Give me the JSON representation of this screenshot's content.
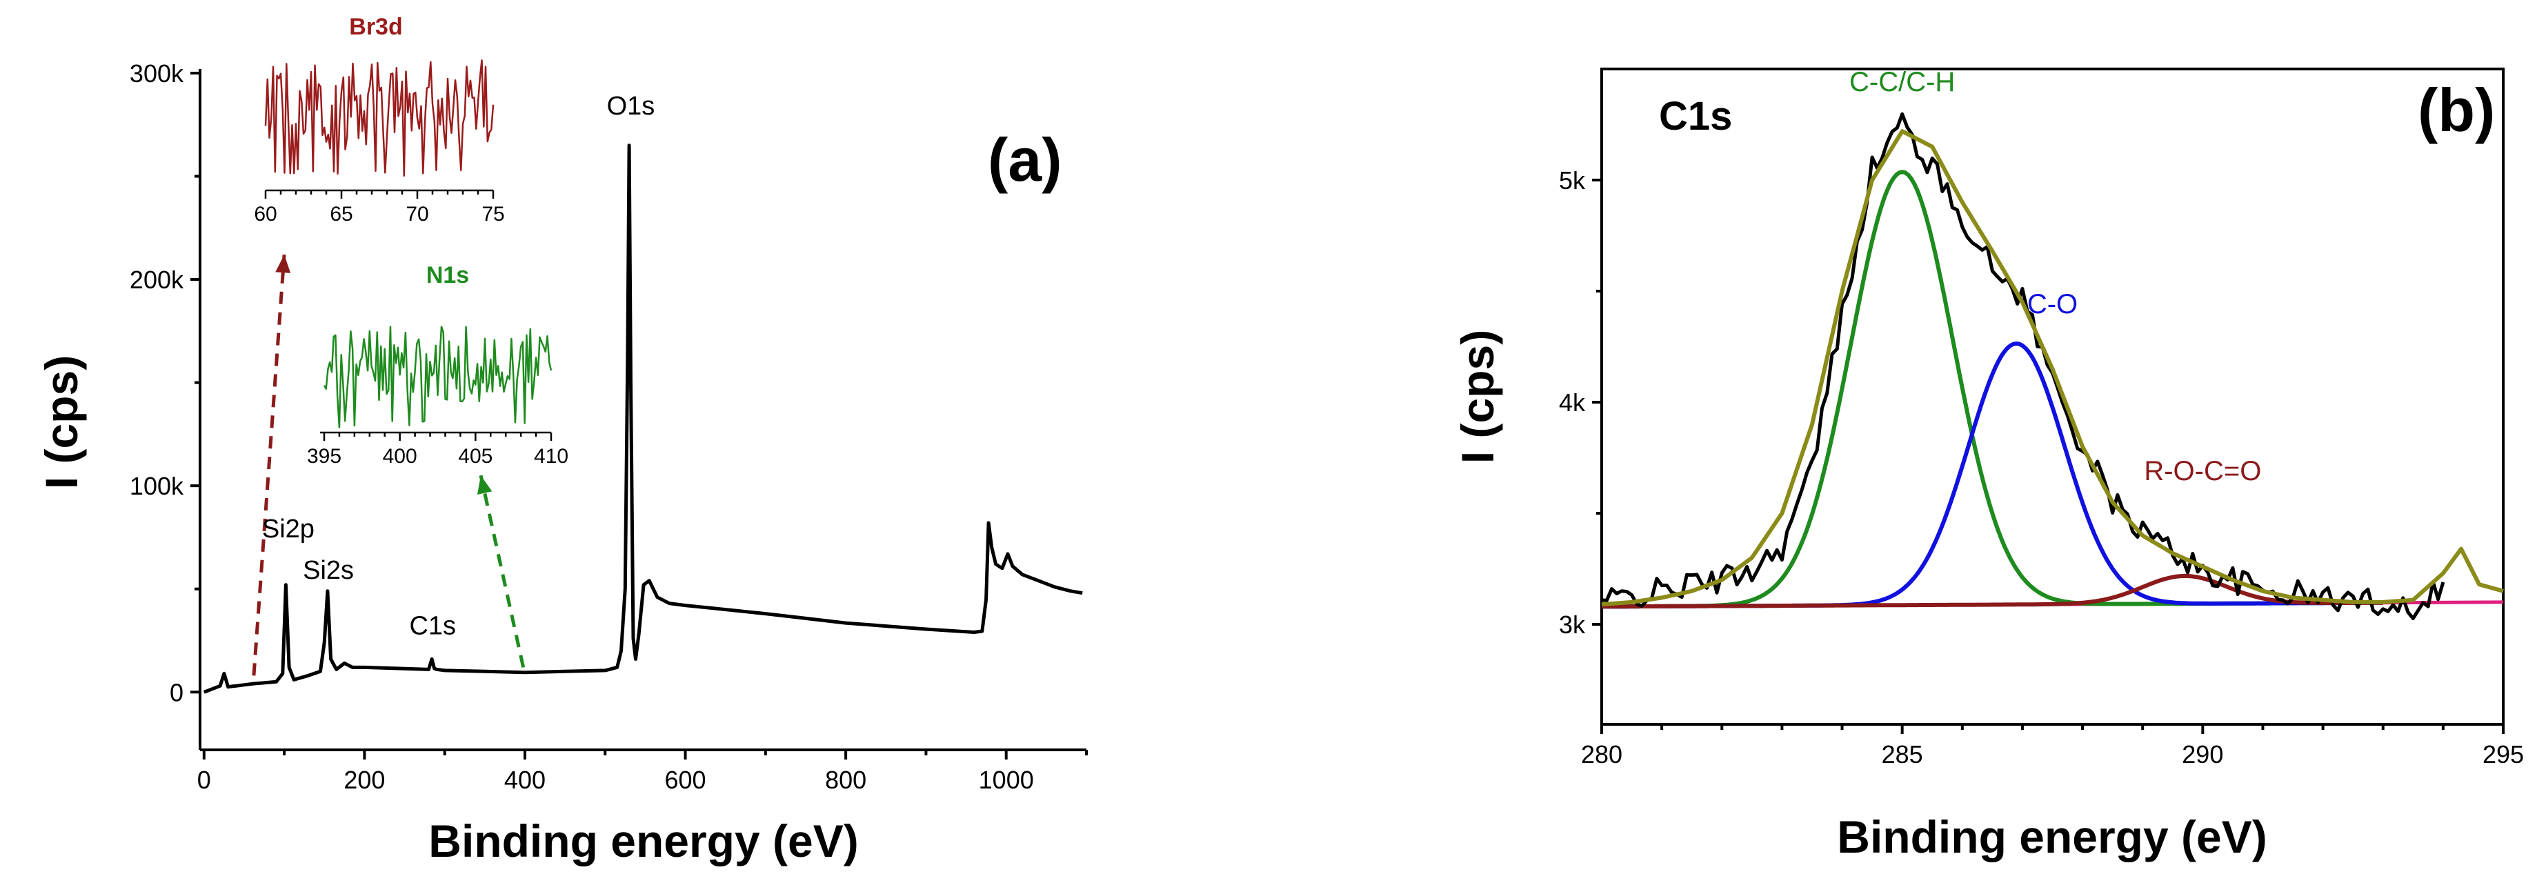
{
  "chart_data": [
    {
      "panel": "(a)",
      "type": "line",
      "title": "",
      "xlabel": "Binding energy (eV)",
      "ylabel": "I (cps)",
      "xlim": [
        -5,
        1100
      ],
      "ylim": [
        -28000,
        302000
      ],
      "xticks": [
        0,
        200,
        400,
        600,
        800,
        1000
      ],
      "xtick_labels": [
        "0",
        "200",
        "400",
        "600",
        "800",
        "1000"
      ],
      "yticks": [
        0,
        100000,
        200000,
        300000
      ],
      "ytick_labels": [
        "0",
        "100k",
        "200k",
        "300k"
      ],
      "series": [
        {
          "name": "survey",
          "color": "#000000",
          "x": [
            0,
            10,
            20,
            25,
            30,
            35,
            40,
            60,
            90,
            98,
            102,
            106,
            112,
            130,
            145,
            150,
            154,
            158,
            165,
            175,
            185,
            200,
            240,
            280,
            284,
            287,
            290,
            300,
            350,
            400,
            450,
            500,
            515,
            520,
            525,
            528,
            530,
            532,
            535,
            538,
            542,
            548,
            555,
            565,
            580,
            600,
            700,
            800,
            900,
            960,
            970,
            975,
            978,
            982,
            987,
            995,
            1002,
            1008,
            1020,
            1040,
            1060,
            1080,
            1095
          ],
          "y": [
            0,
            1500,
            3000,
            9000,
            2500,
            2800,
            3000,
            4000,
            5000,
            9000,
            52000,
            12000,
            6000,
            8000,
            10000,
            24000,
            49000,
            16000,
            11000,
            14000,
            12000,
            12000,
            11500,
            11000,
            16000,
            11500,
            11000,
            10500,
            10000,
            9500,
            10000,
            10500,
            12000,
            20000,
            50000,
            160000,
            265000,
            150000,
            26000,
            16000,
            28000,
            52000,
            54000,
            46000,
            43000,
            42000,
            38000,
            33500,
            30500,
            29000,
            29500,
            45000,
            82000,
            70000,
            62000,
            60000,
            67000,
            61000,
            57000,
            54000,
            51000,
            49000,
            48000
          ]
        }
      ],
      "annotations": [
        {
          "text": "O1s",
          "x": 532,
          "y": 280000
        },
        {
          "text": "Si2p",
          "x": 105,
          "y": 75000
        },
        {
          "text": "Si2s",
          "x": 155,
          "y": 55000
        },
        {
          "text": "C1s",
          "x": 285,
          "y": 28000
        }
      ],
      "arrows": [
        {
          "color": "#8B1A1A",
          "from": [
            62,
            8000
          ],
          "to": [
            100,
            212000
          ],
          "style": "dashed"
        },
        {
          "color": "#1E8B1E",
          "from": [
            398,
            12000
          ],
          "to": [
            345,
            105000
          ],
          "style": "dashed"
        }
      ],
      "insets": [
        {
          "title": "Br3d",
          "color": "#9B1B1B",
          "xlim": [
            60,
            75
          ],
          "xticks": [
            60,
            65,
            70,
            75
          ],
          "xtick_labels": [
            "60",
            "65",
            "70",
            "75"
          ]
        },
        {
          "title": "N1s",
          "color": "#1E8B1E",
          "xlim": [
            395,
            410
          ],
          "xticks": [
            395,
            400,
            405,
            410
          ],
          "xtick_labels": [
            "395",
            "400",
            "405",
            "410"
          ]
        }
      ]
    },
    {
      "panel": "(b)",
      "type": "line",
      "title": "C1s",
      "xlabel": "Binding energy (eV)",
      "ylabel": "I (cps)",
      "xlim": [
        280,
        295
      ],
      "ylim": [
        2550,
        5500
      ],
      "xticks": [
        280,
        285,
        290,
        295
      ],
      "xtick_labels": [
        "280",
        "285",
        "290",
        "295"
      ],
      "yticks": [
        3000,
        4000,
        5000
      ],
      "ytick_labels": [
        "3k",
        "4k",
        "5k"
      ],
      "baseline": [
        3080,
        3100
      ],
      "components": [
        {
          "name": "C-C/C-H",
          "color": "#1E8B1E",
          "center": 285.0,
          "amplitude": 1950,
          "sigma": 0.85
        },
        {
          "name": "C-O",
          "color": "#1010E0",
          "center": 286.9,
          "amplitude": 1175,
          "sigma": 0.8
        },
        {
          "name": "R-O-C=O",
          "color": "#8B1A1A",
          "center": 289.7,
          "amplitude": 125,
          "sigma": 0.7
        }
      ],
      "series": [
        {
          "name": "baseline",
          "color": "#E0207E",
          "x": [
            280,
            295
          ],
          "y": [
            3080,
            3100
          ]
        },
        {
          "name": "experimental",
          "color": "#000000",
          "x": [
            280.0,
            280.5,
            281.0,
            281.5,
            282.0,
            282.5,
            283.0,
            283.5,
            284.0,
            284.5,
            285.0,
            285.5,
            286.0,
            286.5,
            287.0,
            287.5,
            288.0,
            288.5,
            289.0,
            289.5,
            290.0,
            290.5,
            291.0,
            291.5,
            292.0,
            292.5,
            293.0,
            293.5,
            294.0
          ],
          "y": [
            3100,
            3130,
            3150,
            3180,
            3200,
            3250,
            3350,
            3700,
            4400,
            5050,
            5260,
            5050,
            4840,
            4600,
            4480,
            4100,
            3800,
            3550,
            3420,
            3330,
            3240,
            3200,
            3150,
            3140,
            3120,
            3110,
            3100,
            3080,
            3190
          ]
        },
        {
          "name": "envelope",
          "color": "#8B8B1A",
          "x": [
            280.0,
            280.5,
            281.0,
            281.5,
            282.0,
            282.5,
            283.0,
            283.5,
            284.0,
            284.5,
            285.0,
            285.5,
            286.0,
            286.5,
            287.0,
            287.5,
            288.0,
            288.5,
            289.0,
            289.5,
            290.0,
            290.5,
            291.0,
            291.5,
            292.0,
            292.5,
            293.0,
            293.5,
            294.0,
            294.3,
            294.6,
            295.0
          ],
          "y": [
            3090,
            3100,
            3120,
            3150,
            3200,
            3300,
            3500,
            3900,
            4500,
            5000,
            5220,
            5150,
            4900,
            4680,
            4450,
            4150,
            3800,
            3550,
            3400,
            3320,
            3260,
            3200,
            3150,
            3120,
            3110,
            3100,
            3100,
            3110,
            3230,
            3340,
            3180,
            3150
          ]
        }
      ],
      "annotations": [
        {
          "text": "C-C/C-H",
          "color": "#1E8B1E",
          "x": 285.0,
          "y": 5400
        },
        {
          "text": "C-O",
          "color": "#1010E0",
          "x": 287.5,
          "y": 4400
        },
        {
          "text": "R-O-C=O",
          "color": "#8B1A1A",
          "x": 290.0,
          "y": 3650
        }
      ]
    }
  ]
}
